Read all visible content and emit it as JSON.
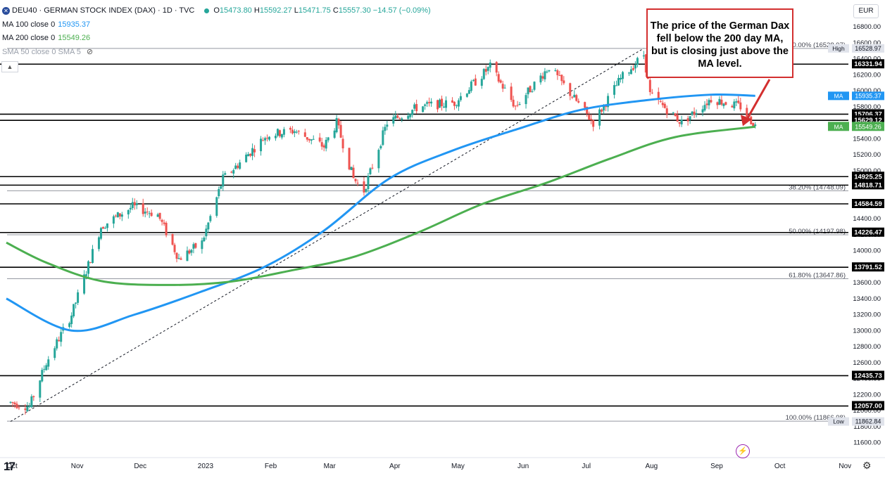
{
  "header": {
    "symbol_title": "DEU40 · GERMAN STOCK INDEX (DAX) · 1D · TVC",
    "ohlc": {
      "O": "15473.80",
      "H": "15592.27",
      "L": "15471.75",
      "C": "15557.30",
      "change": "−14.57 (−0.09%)"
    },
    "ma100_label": "MA 100 close 0",
    "ma100_value": "15935.37",
    "ma200_label": "MA 200 close 0",
    "ma200_value": "15549.26",
    "sma50_label": "SMA 50 close 0 SMA 5",
    "collapse_icon": "▲",
    "currency": "EUR"
  },
  "annotation": "The price of the German Dax fell below the 200 day MA, but is closing just above the MA level.",
  "colors": {
    "up": "#26a69a",
    "down": "#ef5350",
    "ma100": "#2196f3",
    "ma200": "#4caf50",
    "callout": "#d32f2f",
    "line": "#000000"
  },
  "chart_data": {
    "type": "candlestick",
    "title": "DEU40 · GERMAN STOCK INDEX (DAX) · 1D · TVC",
    "x_tick_labels": [
      "Oct",
      "Nov",
      "Dec",
      "2023",
      "Feb",
      "Mar",
      "Apr",
      "May",
      "Jun",
      "Jul",
      "Aug",
      "Sep",
      "Oct",
      "Nov"
    ],
    "y_ticks": [
      11600,
      11800,
      12000,
      12200,
      12400,
      12600,
      12800,
      13000,
      13200,
      13400,
      13600,
      13800,
      14000,
      14200,
      14400,
      14600,
      14800,
      15000,
      15200,
      15400,
      15600,
      15800,
      16000,
      16200,
      16400,
      16600,
      16800
    ],
    "ylim": [
      11560,
      16860
    ],
    "x_range_months": [
      "2022-10-01",
      "2023-11-20"
    ],
    "price_path": [
      [
        "2022-10-03",
        12100
      ],
      [
        "2022-10-12",
        12050
      ],
      [
        "2022-10-20",
        12600
      ],
      [
        "2022-11-01",
        13200
      ],
      [
        "2022-11-10",
        13900
      ],
      [
        "2022-11-15",
        14300
      ],
      [
        "2022-11-30",
        14550
      ],
      [
        "2022-12-12",
        14450
      ],
      [
        "2022-12-22",
        13900
      ],
      [
        "2023-01-02",
        14100
      ],
      [
        "2023-01-12",
        14900
      ],
      [
        "2023-01-20",
        15100
      ],
      [
        "2023-02-02",
        15450
      ],
      [
        "2023-02-15",
        15500
      ],
      [
        "2023-03-01",
        15300
      ],
      [
        "2023-03-07",
        15600
      ],
      [
        "2023-03-15",
        14900
      ],
      [
        "2023-03-20",
        14750
      ],
      [
        "2023-03-31",
        15600
      ],
      [
        "2023-04-15",
        15800
      ],
      [
        "2023-05-02",
        15850
      ],
      [
        "2023-05-19",
        16300
      ],
      [
        "2023-05-31",
        15800
      ],
      [
        "2023-06-16",
        16300
      ],
      [
        "2023-07-07",
        15600
      ],
      [
        "2023-07-20",
        16150
      ],
      [
        "2023-07-31",
        16450
      ],
      [
        "2023-08-03",
        15950
      ],
      [
        "2023-08-18",
        15600
      ],
      [
        "2023-09-01",
        15900
      ],
      [
        "2023-09-15",
        15800
      ],
      [
        "2023-09-22",
        15557.3
      ]
    ],
    "series": [
      {
        "name": "MA 100",
        "points": [
          [
            "2022-10-01",
            13400
          ],
          [
            "2022-11-01",
            13000
          ],
          [
            "2022-12-01",
            13200
          ],
          [
            "2023-01-01",
            13480
          ],
          [
            "2023-02-01",
            13800
          ],
          [
            "2023-03-01",
            14250
          ],
          [
            "2023-04-01",
            14900
          ],
          [
            "2023-05-01",
            15250
          ],
          [
            "2023-06-01",
            15520
          ],
          [
            "2023-07-01",
            15760
          ],
          [
            "2023-08-01",
            15880
          ],
          [
            "2023-09-01",
            15950
          ],
          [
            "2023-09-22",
            15935.37
          ]
        ]
      },
      {
        "name": "MA 200",
        "points": [
          [
            "2022-10-01",
            14100
          ],
          [
            "2022-10-20",
            13850
          ],
          [
            "2022-11-15",
            13620
          ],
          [
            "2022-12-15",
            13570
          ],
          [
            "2023-01-15",
            13610
          ],
          [
            "2023-02-15",
            13760
          ],
          [
            "2023-03-15",
            13920
          ],
          [
            "2023-04-15",
            14230
          ],
          [
            "2023-05-15",
            14580
          ],
          [
            "2023-06-15",
            14850
          ],
          [
            "2023-07-15",
            15150
          ],
          [
            "2023-08-15",
            15420
          ],
          [
            "2023-09-22",
            15549.26
          ]
        ]
      }
    ],
    "trendline": [
      [
        "2022-10-03",
        11862.84
      ],
      [
        "2023-07-31",
        16528.97
      ]
    ],
    "horizontal_levels": [
      {
        "price": 16331.94,
        "label": "16331.94"
      },
      {
        "price": 15706.37,
        "label": "15706.37"
      },
      {
        "price": 15629.12,
        "label": "15629.12"
      },
      {
        "price": 14925.25,
        "label": "14925.25"
      },
      {
        "price": 14818.71,
        "label": "14818.71"
      },
      {
        "price": 14584.59,
        "label": "14584.59"
      },
      {
        "price": 14226.47,
        "label": "14226.47"
      },
      {
        "price": 13791.52,
        "label": "13791.52"
      },
      {
        "price": 12435.73,
        "label": "12435.73"
      },
      {
        "price": 12057.0,
        "label": "12057.00"
      }
    ],
    "fib_levels": [
      {
        "price": 16528.97,
        "label": "0.00% (16528.97)"
      },
      {
        "price": 14748.09,
        "label": "38.20% (14748.09)"
      },
      {
        "price": 14197.98,
        "label": "50.00% (14197.98)"
      },
      {
        "price": 13647.86,
        "label": "61.80% (13647.86)"
      },
      {
        "price": 11866.98,
        "label": "100.00% (11866.98)"
      }
    ],
    "price_labels": [
      {
        "tag": "High",
        "price": 16528.97,
        "text": "16528.97"
      },
      {
        "tag": "MA",
        "price": 15935.37,
        "text": "15935.37"
      },
      {
        "tag": "DEU40",
        "price": 15557.3,
        "text": "15557.30"
      },
      {
        "tag": "MA",
        "price": 15549.26,
        "text": "15549.26"
      },
      {
        "tag": "Low",
        "price": 11862.84,
        "text": "11862.84"
      }
    ]
  },
  "footer": {
    "logo": "17",
    "gear_icon": "⚙",
    "bolt_icon": "⚡"
  }
}
